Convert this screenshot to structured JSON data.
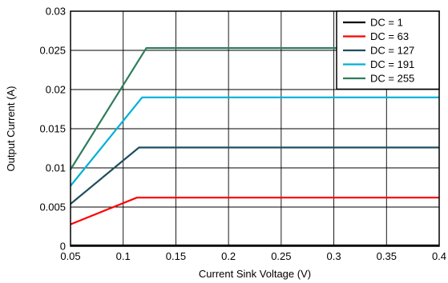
{
  "chart_data": {
    "type": "line",
    "title": "",
    "xlabel": "Current Sink Voltage (V)",
    "ylabel": "Output Current (A)",
    "xlim": [
      0.05,
      0.4
    ],
    "ylim": [
      0,
      0.03
    ],
    "x_ticks": [
      "0.05",
      "0.1",
      "0.15",
      "0.2",
      "0.25",
      "0.3",
      "0.35",
      "0.4"
    ],
    "y_ticks": [
      "0",
      "0.005",
      "0.01",
      "0.015",
      "0.02",
      "0.025",
      "0.03"
    ],
    "grid": true,
    "legend_position": "top-right",
    "series": [
      {
        "name": "DC = 1",
        "color": "#000000",
        "points": [
          [
            0.05,
            0.0001
          ],
          [
            0.1,
            0.0001
          ],
          [
            0.4,
            0.0001
          ]
        ]
      },
      {
        "name": "DC = 63",
        "color": "#ff0000",
        "points": [
          [
            0.05,
            0.0028
          ],
          [
            0.113,
            0.0062
          ],
          [
            0.4,
            0.0062
          ]
        ]
      },
      {
        "name": "DC = 127",
        "color": "#1f4e5f",
        "points": [
          [
            0.05,
            0.0054
          ],
          [
            0.115,
            0.0126
          ],
          [
            0.4,
            0.0126
          ]
        ]
      },
      {
        "name": "DC = 191",
        "color": "#00b0d8",
        "points": [
          [
            0.05,
            0.0077
          ],
          [
            0.118,
            0.019
          ],
          [
            0.4,
            0.019
          ]
        ]
      },
      {
        "name": "DC = 255",
        "color": "#2e7d5b",
        "points": [
          [
            0.05,
            0.0098
          ],
          [
            0.122,
            0.0253
          ],
          [
            0.4,
            0.0253
          ]
        ]
      }
    ]
  }
}
